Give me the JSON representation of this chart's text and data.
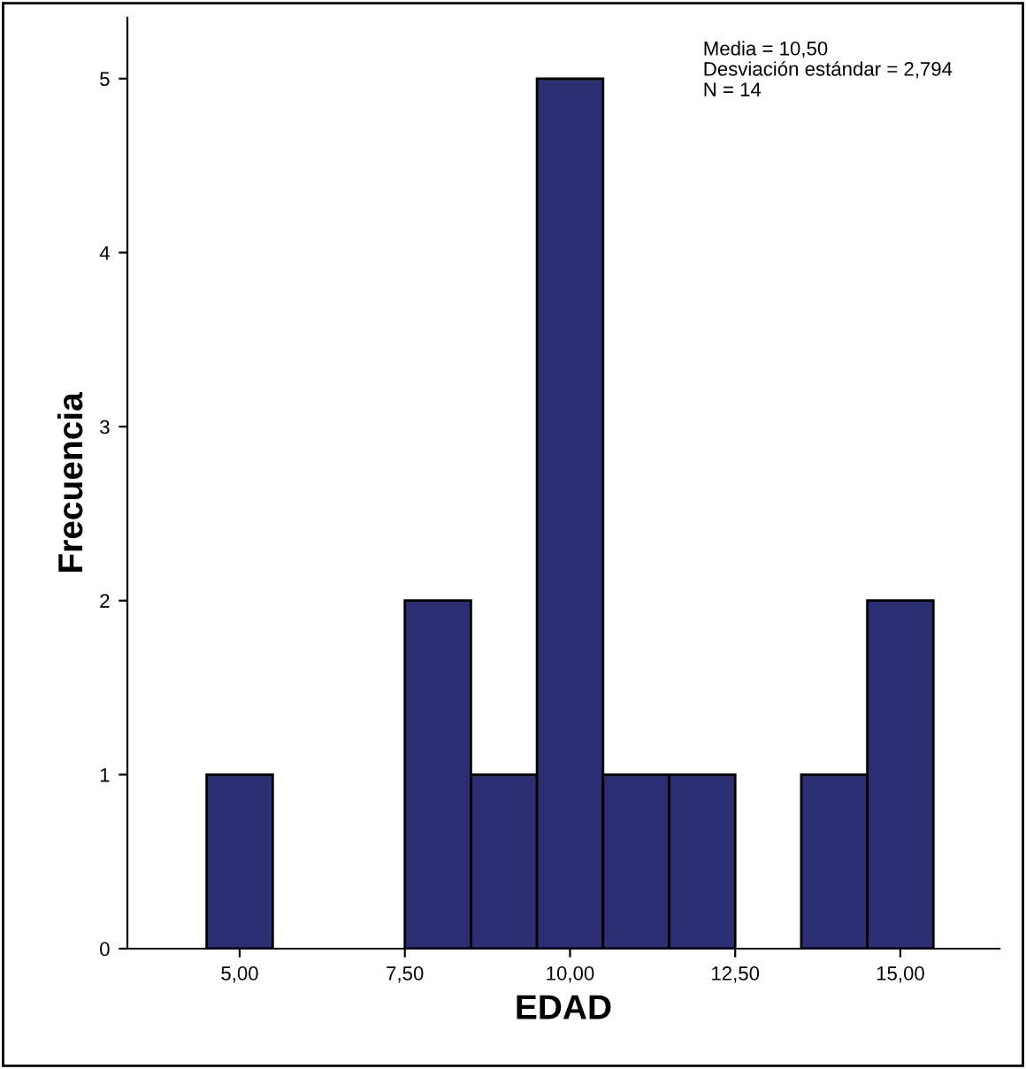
{
  "chart_data": {
    "type": "histogram",
    "xlabel": "EDAD",
    "ylabel": "Frecuencia",
    "bins": [
      4.5,
      5.5,
      6.5,
      7.5,
      8.5,
      9.5,
      10.5,
      11.5,
      12.5,
      13.5,
      14.5,
      15.5
    ],
    "values": [
      1,
      0,
      0,
      2,
      1,
      5,
      1,
      1,
      0,
      1,
      2
    ],
    "color": "#2b2e72",
    "xlim": [
      3.3,
      16.5
    ],
    "ylim": [
      0,
      5.35
    ],
    "xticks": [
      {
        "value": 5,
        "label": "5,00"
      },
      {
        "value": 7.5,
        "label": "7,50"
      },
      {
        "value": 10,
        "label": "10,00"
      },
      {
        "value": 12.5,
        "label": "12,50"
      },
      {
        "value": 15,
        "label": "15,00"
      }
    ],
    "yticks": [
      0,
      1,
      2,
      3,
      4,
      5
    ],
    "annotations": [
      "Media = 10,50",
      "Desviación estándar = 2,794",
      "N = 14"
    ],
    "grid": false
  }
}
